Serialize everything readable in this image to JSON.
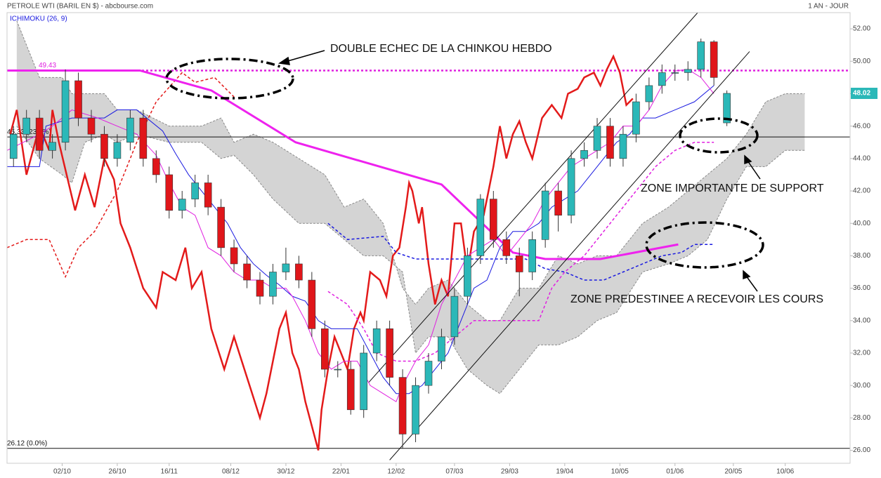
{
  "chart_data": {
    "type": "candlestick",
    "title": "PETROLE WTI (BARIL EN $) - abcbourse.com",
    "period": "1 AN - JOUR",
    "indicator": "ICHIMOKU (26, 9)",
    "annotations": [
      "DOUBLE ECHEC DE LA CHINKOU HEBDO",
      "ZONE IMPORTANTE DE SUPPORT",
      "ZONE PREDESTINEE A RECEVOIR LES COURS"
    ],
    "xlim": [
      0,
      260
    ],
    "ylim": [
      25.2,
      53.0
    ],
    "xticks": [
      {
        "value": 17,
        "label": "02/10"
      },
      {
        "value": 34,
        "label": "26/10"
      },
      {
        "value": 50,
        "label": "16/11"
      },
      {
        "value": 69,
        "label": "08/12"
      },
      {
        "value": 86,
        "label": "30/12"
      },
      {
        "value": 103,
        "label": "22/01"
      },
      {
        "value": 120,
        "label": "12/02"
      },
      {
        "value": 138,
        "label": "07/03"
      },
      {
        "value": 155,
        "label": "29/03"
      },
      {
        "value": 172,
        "label": "19/04"
      },
      {
        "value": 189,
        "label": "10/05"
      },
      {
        "value": 206,
        "label": "01/06"
      },
      {
        "value": 224,
        "label": "20/05"
      },
      {
        "value": 240,
        "label": "10/06"
      }
    ],
    "yticks": [
      {
        "value": 26,
        "label": "26.00"
      },
      {
        "value": 28,
        "label": "28.00"
      },
      {
        "value": 30,
        "label": "30.00"
      },
      {
        "value": 32,
        "label": "32.00"
      },
      {
        "value": 34,
        "label": "34.00"
      },
      {
        "value": 36,
        "label": "36.00"
      },
      {
        "value": 38,
        "label": "38.00"
      },
      {
        "value": 40,
        "label": "40.00"
      },
      {
        "value": 42,
        "label": "42.00"
      },
      {
        "value": 44,
        "label": "44.00"
      },
      {
        "value": 46,
        "label": "46.00"
      },
      {
        "value": 48,
        "label": "48.00"
      },
      {
        "value": 50,
        "label": "50.00"
      },
      {
        "value": 52,
        "label": "52.00"
      }
    ],
    "up_color": "#2bb8b8",
    "down_color": "#e0161a",
    "candles": {
      "x": [
        2,
        6,
        10,
        14,
        18,
        22,
        26,
        30,
        34,
        38,
        42,
        46,
        50,
        54,
        58,
        62,
        66,
        70,
        74,
        78,
        82,
        86,
        90,
        94,
        98,
        102,
        106,
        110,
        114,
        118,
        122,
        126,
        130,
        134,
        138,
        142,
        146,
        150,
        154,
        158,
        162,
        166,
        170,
        174,
        178,
        182,
        186,
        190,
        194,
        198,
        202,
        206,
        210,
        214,
        218,
        222
      ],
      "open": [
        44,
        45.5,
        46.5,
        44.5,
        45,
        48.8,
        46.5,
        45.5,
        44,
        45,
        46.5,
        44,
        43,
        40.8,
        41.5,
        42.5,
        41,
        38.5,
        37.5,
        36.5,
        35.5,
        37,
        37.5,
        36.5,
        33.5,
        31,
        31,
        28.5,
        32,
        33.5,
        30.5,
        27,
        30,
        31.5,
        33,
        35.5,
        38,
        41.5,
        39,
        38,
        37,
        39,
        42,
        40.5,
        44,
        44.5,
        46,
        44,
        45.5,
        47.5,
        48.5,
        49.3,
        49.3,
        49.5,
        51.2,
        46.2
      ],
      "high": [
        46,
        47,
        47,
        45.5,
        49.5,
        49.3,
        47,
        46,
        45.5,
        47,
        47,
        44.5,
        43.5,
        42,
        43,
        43,
        41.5,
        39,
        38,
        37,
        37.5,
        38.5,
        38,
        37,
        34,
        31.5,
        31.5,
        32.5,
        34,
        34,
        31,
        30.5,
        32,
        33.5,
        36,
        38.5,
        41.8,
        42,
        39.5,
        38.5,
        39.5,
        42.5,
        42.5,
        44.5,
        45,
        46.5,
        46.5,
        46,
        48,
        49,
        49.8,
        49.8,
        50,
        51.4,
        51.3,
        48.2
      ],
      "low": [
        43.5,
        45,
        44,
        44,
        44.5,
        46,
        45,
        43.5,
        43.5,
        44.5,
        43.5,
        42.5,
        40.3,
        40.3,
        41,
        40.5,
        38,
        37,
        36,
        35,
        35,
        36.5,
        36,
        33,
        30.5,
        30.5,
        28.2,
        28,
        31.5,
        30,
        26.1,
        26.5,
        29.5,
        31,
        32.5,
        35,
        37.5,
        38.5,
        37.5,
        35.5,
        36.5,
        38.5,
        39.5,
        40,
        43.5,
        44,
        43.5,
        43.5,
        45,
        47,
        48,
        48.8,
        48.8,
        49,
        48.5,
        46
      ],
      "close": [
        45.5,
        46.5,
        44.5,
        45,
        48.8,
        46.5,
        45.5,
        44,
        45,
        46.5,
        44,
        43,
        40.8,
        41.5,
        42.5,
        41,
        38.5,
        37.5,
        36.5,
        35.5,
        37,
        37.5,
        36.5,
        33.5,
        31,
        31,
        28.5,
        32,
        33.5,
        30.5,
        27,
        30,
        31.5,
        33,
        35.5,
        38,
        41.5,
        39,
        38,
        37,
        39,
        42,
        40.5,
        44,
        44.5,
        46,
        44,
        45.5,
        47.5,
        48.5,
        49.3,
        49.3,
        49.5,
        51.2,
        49,
        48.02
      ]
    },
    "cloud": {
      "color": "#d4d4d4",
      "x": [
        3,
        10,
        17,
        20,
        24,
        30,
        34,
        40,
        50,
        60,
        66,
        70,
        76,
        82,
        90,
        98,
        104,
        110,
        116,
        122,
        126,
        130,
        136,
        142,
        148,
        152,
        158,
        164,
        170,
        176,
        182,
        188,
        196,
        204,
        210,
        216,
        222,
        228,
        234,
        240,
        246
      ],
      "span_a": [
        52.5,
        49,
        49,
        48,
        48,
        48,
        47,
        47,
        46,
        46,
        46.5,
        45,
        45.5,
        45,
        44,
        43,
        41,
        41.5,
        40,
        36,
        35,
        36,
        36.5,
        35,
        34,
        34,
        36,
        36,
        38,
        37.5,
        38,
        38,
        40,
        41,
        42,
        43,
        44,
        45.5,
        47.5,
        48,
        48
      ],
      "span_b": [
        46,
        44,
        43,
        42.5,
        45,
        45.5,
        45,
        45.5,
        45,
        45,
        44,
        44.2,
        43,
        41.5,
        40,
        40,
        39,
        38,
        38,
        37,
        32,
        33,
        33,
        31,
        30,
        29.5,
        31,
        32.5,
        32.5,
        33,
        34,
        34.5,
        37,
        37.5,
        38,
        39,
        41.5,
        43.5,
        43.5,
        44.5,
        44.5
      ]
    },
    "lines": [
      {
        "color": "#e31a1a",
        "width": 2.5,
        "dash": false,
        "x": [
          1,
          3,
          6,
          10,
          13,
          14,
          16,
          21,
          24,
          27,
          30,
          33,
          35,
          38,
          42,
          46,
          48,
          52,
          55,
          57,
          60,
          63,
          67,
          70,
          74,
          78,
          80,
          84,
          86,
          88,
          90,
          92,
          94,
          96,
          97,
          99,
          101,
          103,
          105,
          107,
          109,
          110,
          112,
          115,
          117,
          119,
          121,
          123,
          124,
          125,
          127,
          128,
          130,
          132,
          134,
          136,
          138,
          140,
          142,
          144,
          147,
          150,
          152,
          154,
          156,
          158,
          160,
          162,
          165,
          168,
          171,
          173,
          176,
          178,
          181,
          183,
          185,
          187,
          189,
          191,
          193
        ],
        "values": [
          45.5,
          47,
          43,
          46,
          44.5,
          47,
          45,
          40.8,
          43,
          41,
          44,
          42.7,
          40,
          38.5,
          36,
          34.8,
          37,
          36.5,
          38.5,
          36,
          37,
          33.5,
          31,
          33,
          30.5,
          28,
          29.5,
          33.5,
          34.5,
          32,
          31,
          29,
          27.5,
          26,
          28.5,
          31,
          33,
          32,
          31,
          33.5,
          34.5,
          34,
          37,
          36.5,
          35.5,
          38,
          38.5,
          41,
          42.5,
          42,
          40,
          41,
          37.5,
          35,
          36.5,
          35.5,
          40,
          40,
          37,
          39.5,
          40.5,
          43.5,
          46,
          44,
          45.5,
          46.3,
          45,
          44,
          46.5,
          47.3,
          46.5,
          48,
          48.3,
          49,
          49.3,
          48.5,
          49.5,
          50.3,
          49.3,
          47.3,
          47.7
        ]
      },
      {
        "color": "#1a1ae0",
        "width": 1,
        "dash": false,
        "x": [
          0,
          10,
          12,
          20,
          30,
          34,
          40,
          48,
          52,
          56,
          60,
          64,
          68,
          72,
          76,
          80,
          84,
          88,
          92,
          96,
          100,
          104,
          108,
          112,
          116,
          120,
          124,
          128,
          132,
          136,
          140,
          144,
          148,
          152,
          156,
          160,
          164,
          168,
          172,
          176,
          180,
          184,
          188,
          192,
          196,
          200,
          206,
          212,
          218
        ],
        "values": [
          43.5,
          43.5,
          46,
          46.5,
          46.5,
          47,
          47,
          45.7,
          44.3,
          43,
          42,
          41,
          40,
          38.5,
          37.5,
          36.8,
          36.2,
          35.5,
          35.2,
          34,
          33.5,
          33.5,
          33.5,
          32,
          30.5,
          29.5,
          29.5,
          30,
          31,
          32,
          34,
          36,
          36.5,
          38.5,
          39.5,
          39.5,
          40,
          41,
          41.5,
          42,
          43,
          44,
          45,
          45.5,
          46.5,
          46.5,
          47,
          47.5,
          48.5
        ]
      },
      {
        "color": "#e020e0",
        "width": 1,
        "dash": false,
        "x": [
          0,
          10,
          14,
          20,
          28,
          34,
          40,
          46,
          50,
          54,
          58,
          62,
          66,
          70,
          74,
          78,
          82,
          86,
          88,
          92,
          96,
          100,
          104,
          108,
          112,
          116,
          120,
          122,
          126,
          130,
          134,
          138,
          142,
          146,
          150,
          154,
          158,
          162,
          166,
          170,
          174,
          178,
          182,
          186,
          190,
          194,
          198,
          202,
          206,
          210,
          214,
          218
        ],
        "values": [
          44.5,
          45.5,
          46,
          47,
          46.5,
          46,
          45.5,
          44.2,
          42.5,
          41,
          40.5,
          38.5,
          38,
          37,
          36.5,
          36.5,
          36,
          36,
          35.5,
          34,
          32,
          31,
          31.5,
          31.5,
          30,
          29.5,
          29,
          30,
          31.5,
          32.5,
          35,
          36.5,
          38,
          38.5,
          39,
          38,
          39,
          40,
          41.5,
          42.5,
          43.5,
          44,
          44.5,
          45,
          46,
          46,
          47,
          48.5,
          49.4,
          49.5,
          49,
          48
        ]
      },
      {
        "color": "#e31a1a",
        "width": 1.5,
        "dash": true,
        "x": [
          0,
          6,
          13,
          18,
          22,
          27,
          34,
          40,
          46,
          54,
          58,
          64,
          70
        ],
        "values": [
          38.5,
          39,
          39,
          36.7,
          38.5,
          39.5,
          42,
          45,
          47.5,
          49.3,
          48.7,
          49,
          47.8
        ]
      },
      {
        "color": "#e020e0",
        "width": 1.5,
        "dash": true,
        "x": [
          99,
          105,
          110,
          114,
          120,
          126,
          132,
          138,
          144,
          150,
          156,
          164,
          168,
          172,
          178,
          184,
          190,
          196,
          200,
          206,
          212,
          218
        ],
        "values": [
          35.8,
          35,
          33.5,
          32,
          31.5,
          31.5,
          32,
          33,
          34,
          34,
          34,
          34,
          36,
          37,
          38,
          39.5,
          41,
          42.5,
          43.5,
          44.5,
          45,
          45
        ]
      },
      {
        "color": "#1a1ae0",
        "width": 1.5,
        "dash": true,
        "x": [
          99,
          105,
          116,
          120,
          126,
          134,
          140,
          150,
          160,
          166,
          172,
          178,
          184,
          190,
          196,
          202,
          208,
          212,
          218
        ],
        "values": [
          40,
          39,
          39.2,
          38.2,
          37.8,
          37.8,
          37.8,
          37.8,
          37.8,
          37.2,
          37,
          36.5,
          36.5,
          37,
          37.5,
          38,
          38.2,
          38.7,
          38.7
        ]
      },
      {
        "color": "#ee22ee",
        "width": 3,
        "dash": false,
        "x": [
          0,
          41,
          63,
          89,
          134,
          156,
          166,
          183,
          207
        ],
        "values": [
          49.43,
          49.43,
          48.2,
          45,
          42.4,
          38.2,
          37.8,
          37.8,
          38.7
        ]
      },
      {
        "color": "#111111",
        "width": 1,
        "dash": false,
        "x": [
          111.6,
          213
        ],
        "values": [
          30.2,
          53.0
        ]
      },
      {
        "color": "#111111",
        "width": 1,
        "dash": false,
        "x": [
          118,
          229
        ],
        "values": [
          25.4,
          50.6
        ]
      }
    ],
    "levels": [
      {
        "value": 49.43,
        "label": "49.43",
        "color": "#e020e0",
        "dash": true
      },
      {
        "value": 45.33,
        "label": "45.33 (23.6%)",
        "color": "#111111",
        "dash": false
      },
      {
        "value": 26.12,
        "label": "26.12 (0.0%)",
        "color": "#111111",
        "dash": false
      }
    ],
    "last_price": {
      "value": 48.02,
      "label": "48.02",
      "color": "#2bb8b8"
    }
  }
}
